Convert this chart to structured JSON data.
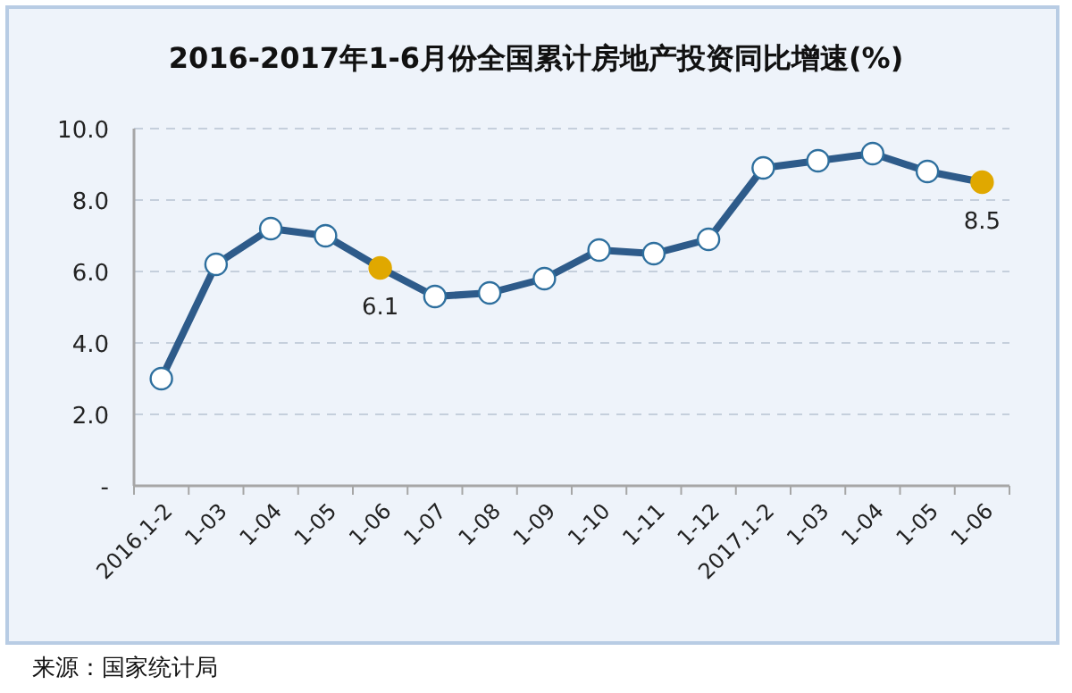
{
  "chart_data": {
    "type": "line",
    "title": "2016-2017年1-6月份全国累计房地产投资同比增速(%)",
    "categories": [
      "2016.1-2",
      "1-03",
      "1-04",
      "1-05",
      "1-06",
      "1-07",
      "1-08",
      "1-09",
      "1-10",
      "1-11",
      "1-12",
      "2017.1-2",
      "1-03",
      "1-04",
      "1-05",
      "1-06"
    ],
    "series": [
      {
        "color": "#2e5b8a",
        "values": [
          3.0,
          6.2,
          7.2,
          7.0,
          6.1,
          5.3,
          5.4,
          5.8,
          6.6,
          6.5,
          6.9,
          8.9,
          9.1,
          9.3,
          8.8,
          8.5
        ],
        "colors": [
          "#ffffff",
          "#ffffff",
          "#ffffff",
          "#ffffff",
          "#e0a800",
          "#ffffff",
          "#ffffff",
          "#ffffff",
          "#ffffff",
          "#ffffff",
          "#ffffff",
          "#ffffff",
          "#ffffff",
          "#ffffff",
          "#ffffff",
          "#e0a800"
        ],
        "value_labels": [
          null,
          null,
          null,
          null,
          "6.1",
          null,
          null,
          null,
          null,
          null,
          null,
          null,
          null,
          null,
          null,
          "8.5"
        ]
      }
    ],
    "ylim": [
      0,
      10
    ],
    "yticks": [
      {
        "value": 0,
        "label": "-"
      },
      {
        "value": 2,
        "label": "2.0"
      },
      {
        "value": 4,
        "label": "4.0"
      },
      {
        "value": 6,
        "label": "6.0"
      },
      {
        "value": 8,
        "label": "8.0"
      },
      {
        "value": 10,
        "label": "10.0"
      }
    ],
    "grid": "y",
    "marker": "circle",
    "line_style": "solid",
    "annotations": [
      "来源：国家统计局"
    ]
  }
}
